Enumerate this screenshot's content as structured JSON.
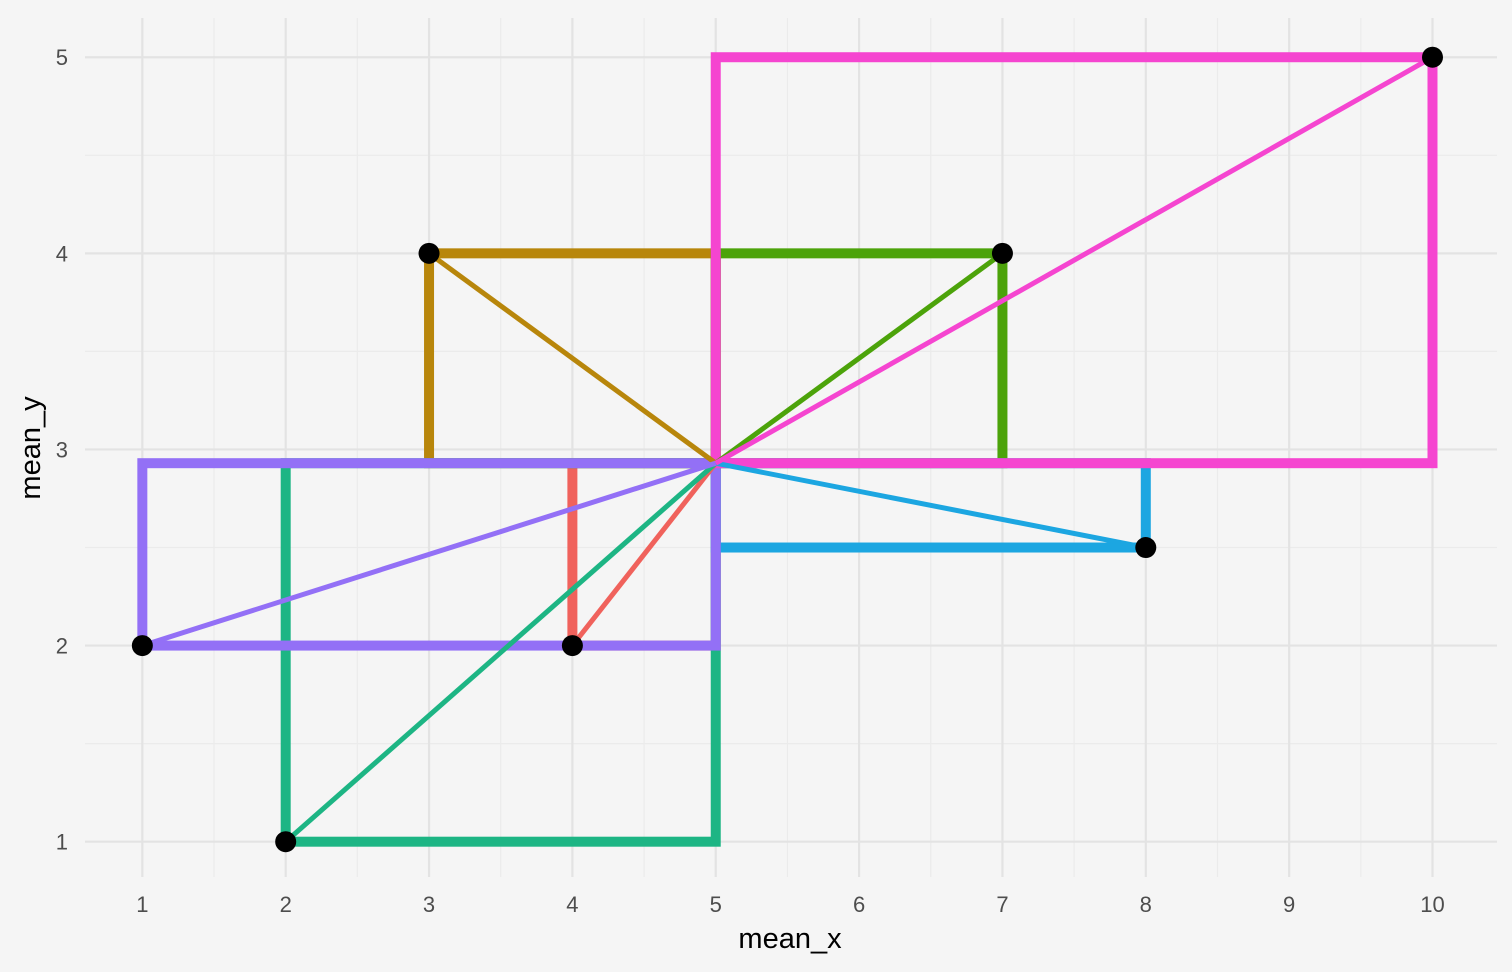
{
  "chart_data": {
    "type": "scatter",
    "xlabel": "mean_x",
    "ylabel": "mean_y",
    "xlim": [
      0.6,
      10.45
    ],
    "ylim": [
      0.82,
      5.2
    ],
    "x_ticks": [
      1,
      2,
      3,
      4,
      5,
      6,
      7,
      8,
      9,
      10
    ],
    "y_ticks": [
      1,
      2,
      3,
      4,
      5
    ],
    "grid": true,
    "center": {
      "x": 5,
      "y": 2.93
    },
    "series": [
      {
        "x": 4,
        "y": 2,
        "color": "#f0625c"
      },
      {
        "x": 3,
        "y": 4,
        "color": "#b8860b"
      },
      {
        "x": 7,
        "y": 4,
        "color": "#4ca30a"
      },
      {
        "x": 2,
        "y": 1,
        "color": "#1db584"
      },
      {
        "x": 8,
        "y": 2.5,
        "color": "#1ca6e1"
      },
      {
        "x": 1,
        "y": 2,
        "color": "#9370f6"
      },
      {
        "x": 10,
        "y": 5,
        "color": "#f545d0"
      }
    ],
    "point_color": "#000000"
  }
}
